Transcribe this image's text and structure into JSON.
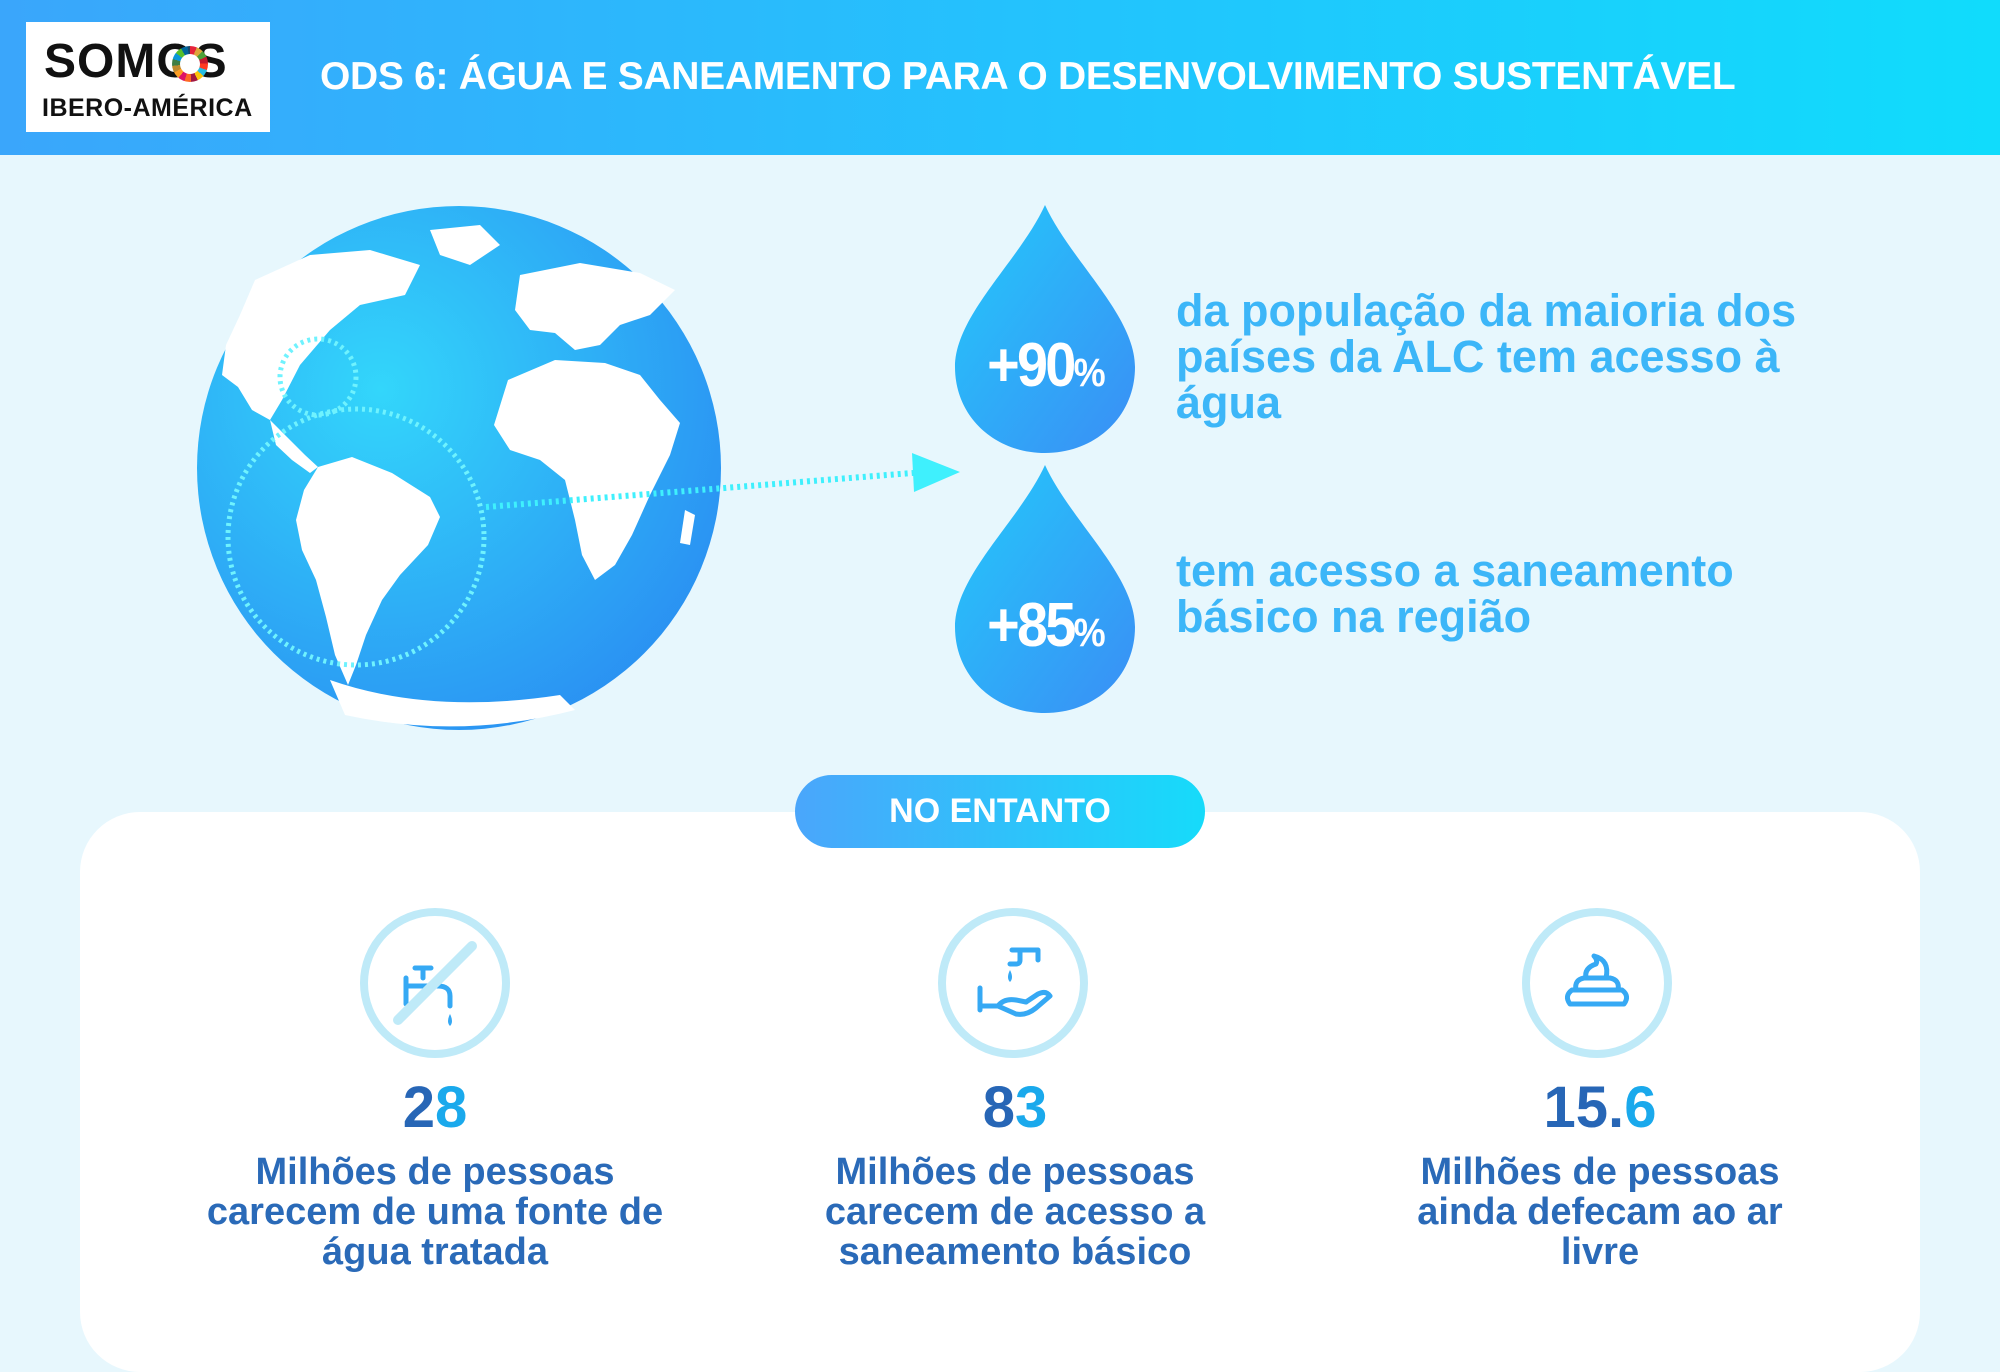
{
  "header": {
    "logo_line1": "SOMOS",
    "logo_line2": "IBERO-AMÉRICA",
    "title": "ODS 6: ÁGUA E SANEAMENTO PARA O DESENVOLVIMENTO SUSTENTÁVEL"
  },
  "stats": [
    {
      "value": "+90",
      "unit": "%",
      "description": "da população da maioria dos países da ALC tem acesso à água"
    },
    {
      "value": "+85",
      "unit": "%",
      "description": "tem acesso a saneamento básico na região"
    }
  ],
  "section_label": "NO ENTANTO",
  "columns": [
    {
      "icon": "no-faucet-icon",
      "number_main": "2",
      "number_accent": "8",
      "description": "Milhões de pessoas carecem de uma fonte de água tratada"
    },
    {
      "icon": "hand-washing-icon",
      "number_main": "8",
      "number_accent": "3",
      "description": "Milhões de pessoas carecem de acesso a saneamento básico"
    },
    {
      "icon": "poop-icon",
      "number_main": "15.",
      "number_accent": "6",
      "description": "Milhões de pessoas ainda defecam ao ar livre"
    }
  ],
  "colors": {
    "header_gradient_start": "#3aa6fb",
    "header_gradient_end": "#10dcfc",
    "background": "#e7f7fd",
    "stat_text": "#3cb6f8",
    "number_dark": "#2766b6",
    "number_accent": "#1aa9ec"
  }
}
